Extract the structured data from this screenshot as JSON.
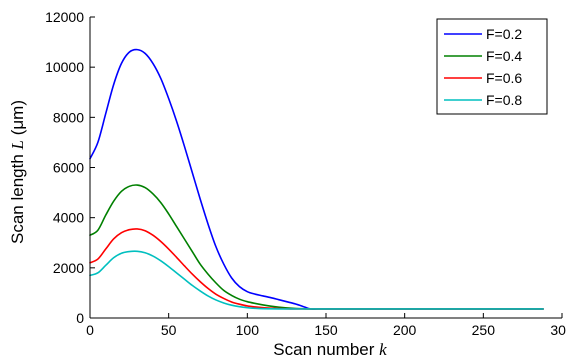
{
  "chart_data": {
    "type": "line",
    "title": "",
    "xlabel": "Scan number k",
    "ylabel": "Scan length L (μm)",
    "xlim": [
      0,
      300
    ],
    "ylim": [
      0,
      12000
    ],
    "x_ticks": [
      0,
      50,
      100,
      150,
      200,
      250,
      300
    ],
    "y_ticks": [
      0,
      2000,
      4000,
      6000,
      8000,
      10000,
      12000
    ],
    "grid": false,
    "legend_position": "top-right",
    "series": [
      {
        "name": "F=0.2",
        "color": "#0000ff",
        "x": [
          0,
          5,
          10,
          15,
          20,
          25,
          30,
          35,
          40,
          45,
          50,
          55,
          60,
          65,
          70,
          75,
          80,
          85,
          90,
          95,
          100,
          105,
          110,
          115,
          120,
          125,
          130,
          135,
          140,
          145,
          150,
          200,
          250,
          288
        ],
        "y": [
          6350,
          7000,
          8150,
          9300,
          10150,
          10600,
          10700,
          10550,
          10150,
          9550,
          8750,
          7850,
          6850,
          5800,
          4750,
          3750,
          2850,
          2150,
          1600,
          1250,
          1050,
          950,
          880,
          810,
          730,
          650,
          570,
          470,
          360,
          360,
          360,
          360,
          360,
          360
        ]
      },
      {
        "name": "F=0.4",
        "color": "#008000",
        "x": [
          0,
          5,
          10,
          15,
          20,
          25,
          30,
          35,
          40,
          45,
          50,
          55,
          60,
          65,
          70,
          75,
          80,
          85,
          90,
          95,
          100,
          105,
          110,
          115,
          120,
          125,
          130,
          135,
          140,
          150,
          200,
          250,
          288
        ],
        "y": [
          3300,
          3500,
          4100,
          4650,
          5050,
          5250,
          5300,
          5200,
          4950,
          4600,
          4150,
          3650,
          3150,
          2650,
          2150,
          1750,
          1400,
          1100,
          900,
          750,
          650,
          580,
          520,
          470,
          430,
          400,
          380,
          370,
          360,
          360,
          360,
          360,
          360
        ]
      },
      {
        "name": "F=0.6",
        "color": "#ff0000",
        "x": [
          0,
          5,
          10,
          15,
          20,
          25,
          30,
          35,
          40,
          45,
          50,
          55,
          60,
          65,
          70,
          75,
          80,
          85,
          90,
          95,
          100,
          105,
          110,
          115,
          120,
          125,
          130,
          140,
          150,
          200,
          250,
          288
        ],
        "y": [
          2200,
          2350,
          2750,
          3150,
          3400,
          3520,
          3550,
          3480,
          3300,
          3050,
          2750,
          2420,
          2080,
          1750,
          1450,
          1180,
          950,
          780,
          640,
          550,
          480,
          440,
          410,
          390,
          375,
          365,
          360,
          360,
          360,
          360,
          360,
          360
        ]
      },
      {
        "name": "F=0.8",
        "color": "#00bfbf",
        "x": [
          0,
          5,
          10,
          15,
          20,
          25,
          30,
          35,
          40,
          45,
          50,
          55,
          60,
          65,
          70,
          75,
          80,
          85,
          90,
          95,
          100,
          105,
          110,
          115,
          120,
          125,
          130,
          140,
          150,
          200,
          250,
          288
        ],
        "y": [
          1700,
          1800,
          2100,
          2400,
          2580,
          2650,
          2660,
          2600,
          2470,
          2280,
          2050,
          1800,
          1550,
          1300,
          1080,
          880,
          720,
          600,
          510,
          450,
          410,
          385,
          370,
          365,
          360,
          360,
          360,
          360,
          360,
          360,
          360,
          360
        ]
      }
    ]
  }
}
